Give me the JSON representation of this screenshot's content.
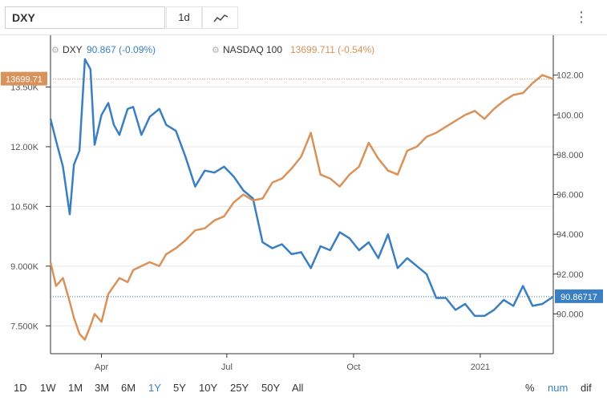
{
  "toolbar": {
    "symbol": "DXY",
    "interval": "1d",
    "menu_glyph": "⋮",
    "chart_type_icon": "line-chart-icon"
  },
  "legend": {
    "dxy_name": "DXY",
    "dxy_value": "90.867 (-0.09%)",
    "ndx_name": "NASDAQ 100",
    "ndx_value": "13699.711 (-0.54%)"
  },
  "ranges": {
    "items": [
      "1D",
      "1W",
      "1M",
      "3M",
      "6M",
      "1Y",
      "5Y",
      "10Y",
      "25Y",
      "50Y",
      "All"
    ],
    "active": "1Y",
    "right": [
      "%",
      "num",
      "dif"
    ],
    "right_active": "num"
  },
  "colors": {
    "dxy": "#3a7fc1",
    "ndx": "#d9925a",
    "grid": "#e8e8e8",
    "axis": "#555555",
    "active": "#3a7fc1"
  },
  "chart_data": {
    "type": "line",
    "x_tick_labels": [
      "Apr",
      "Jul",
      "Oct",
      "2021"
    ],
    "x_tick_dates": [
      "2020-04-01",
      "2020-07-01",
      "2020-10-01",
      "2021-01-01"
    ],
    "x_range": [
      "2020-02-24",
      "2021-02-23"
    ],
    "left_axis": {
      "ticks": [
        "7.500K",
        "9.000K",
        "10.50K",
        "12.00K",
        "13.50K"
      ],
      "tick_values": [
        7500,
        9000,
        10500,
        12000,
        13500
      ],
      "ylim": [
        6800,
        14800
      ]
    },
    "right_axis": {
      "ticks": [
        "90.000",
        "92.000",
        "94.000",
        "96.000",
        "98.000",
        "100.00",
        "102.00"
      ],
      "tick_values": [
        90,
        92,
        94,
        96,
        98,
        100,
        102
      ],
      "ylim": [
        88,
        104
      ]
    },
    "series": [
      {
        "name": "DXY",
        "axis": "right",
        "last_label": "90.86717",
        "points": [
          [
            "2020-02-24",
            99.8
          ],
          [
            "2020-02-28",
            98.7
          ],
          [
            "2020-03-04",
            97.4
          ],
          [
            "2020-03-09",
            95.0
          ],
          [
            "2020-03-12",
            97.5
          ],
          [
            "2020-03-16",
            98.2
          ],
          [
            "2020-03-20",
            102.8
          ],
          [
            "2020-03-24",
            102.3
          ],
          [
            "2020-03-27",
            98.5
          ],
          [
            "2020-04-01",
            100.0
          ],
          [
            "2020-04-06",
            100.6
          ],
          [
            "2020-04-10",
            99.5
          ],
          [
            "2020-04-14",
            99.0
          ],
          [
            "2020-04-20",
            100.3
          ],
          [
            "2020-04-24",
            100.4
          ],
          [
            "2020-04-30",
            99.0
          ],
          [
            "2020-05-06",
            99.9
          ],
          [
            "2020-05-13",
            100.3
          ],
          [
            "2020-05-18",
            99.5
          ],
          [
            "2020-05-25",
            99.2
          ],
          [
            "2020-06-01",
            97.9
          ],
          [
            "2020-06-08",
            96.4
          ],
          [
            "2020-06-15",
            97.2
          ],
          [
            "2020-06-22",
            97.1
          ],
          [
            "2020-06-29",
            97.4
          ],
          [
            "2020-07-06",
            96.9
          ],
          [
            "2020-07-13",
            96.2
          ],
          [
            "2020-07-20",
            95.8
          ],
          [
            "2020-07-27",
            93.6
          ],
          [
            "2020-08-03",
            93.3
          ],
          [
            "2020-08-10",
            93.5
          ],
          [
            "2020-08-17",
            93.0
          ],
          [
            "2020-08-24",
            93.1
          ],
          [
            "2020-08-31",
            92.3
          ],
          [
            "2020-09-07",
            93.4
          ],
          [
            "2020-09-14",
            93.2
          ],
          [
            "2020-09-21",
            94.1
          ],
          [
            "2020-09-28",
            93.8
          ],
          [
            "2020-10-05",
            93.2
          ],
          [
            "2020-10-12",
            93.6
          ],
          [
            "2020-10-19",
            92.8
          ],
          [
            "2020-10-26",
            94.0
          ],
          [
            "2020-11-02",
            92.3
          ],
          [
            "2020-11-09",
            92.8
          ],
          [
            "2020-11-16",
            92.4
          ],
          [
            "2020-11-23",
            92.0
          ],
          [
            "2020-11-30",
            90.8
          ],
          [
            "2020-12-07",
            90.8
          ],
          [
            "2020-12-14",
            90.2
          ],
          [
            "2020-12-21",
            90.5
          ],
          [
            "2020-12-28",
            89.9
          ],
          [
            "2021-01-04",
            89.9
          ],
          [
            "2021-01-11",
            90.2
          ],
          [
            "2021-01-18",
            90.7
          ],
          [
            "2021-01-25",
            90.4
          ],
          [
            "2021-02-01",
            91.4
          ],
          [
            "2021-02-08",
            90.4
          ],
          [
            "2021-02-15",
            90.5
          ],
          [
            "2021-02-23",
            90.867
          ]
        ]
      },
      {
        "name": "NASDAQ 100",
        "axis": "left",
        "last_label": "13699.71",
        "points": [
          [
            "2020-02-24",
            9100
          ],
          [
            "2020-02-28",
            8500
          ],
          [
            "2020-03-04",
            8700
          ],
          [
            "2020-03-09",
            8100
          ],
          [
            "2020-03-12",
            7700
          ],
          [
            "2020-03-16",
            7300
          ],
          [
            "2020-03-20",
            7150
          ],
          [
            "2020-03-24",
            7500
          ],
          [
            "2020-03-27",
            7800
          ],
          [
            "2020-04-01",
            7600
          ],
          [
            "2020-04-06",
            8300
          ],
          [
            "2020-04-10",
            8500
          ],
          [
            "2020-04-14",
            8700
          ],
          [
            "2020-04-20",
            8600
          ],
          [
            "2020-04-24",
            8900
          ],
          [
            "2020-04-30",
            9000
          ],
          [
            "2020-05-06",
            9100
          ],
          [
            "2020-05-13",
            9000
          ],
          [
            "2020-05-18",
            9300
          ],
          [
            "2020-05-25",
            9450
          ],
          [
            "2020-06-01",
            9650
          ],
          [
            "2020-06-08",
            9900
          ],
          [
            "2020-06-15",
            9950
          ],
          [
            "2020-06-22",
            10150
          ],
          [
            "2020-06-29",
            10250
          ],
          [
            "2020-07-06",
            10600
          ],
          [
            "2020-07-13",
            10800
          ],
          [
            "2020-07-20",
            10650
          ],
          [
            "2020-07-27",
            10700
          ],
          [
            "2020-08-03",
            11100
          ],
          [
            "2020-08-10",
            11200
          ],
          [
            "2020-08-17",
            11450
          ],
          [
            "2020-08-24",
            11750
          ],
          [
            "2020-08-31",
            12350
          ],
          [
            "2020-09-07",
            11300
          ],
          [
            "2020-09-14",
            11200
          ],
          [
            "2020-09-21",
            11000
          ],
          [
            "2020-09-28",
            11300
          ],
          [
            "2020-10-05",
            11500
          ],
          [
            "2020-10-12",
            12100
          ],
          [
            "2020-10-19",
            11700
          ],
          [
            "2020-10-26",
            11400
          ],
          [
            "2020-11-02",
            11300
          ],
          [
            "2020-11-09",
            11900
          ],
          [
            "2020-11-16",
            12000
          ],
          [
            "2020-11-23",
            12250
          ],
          [
            "2020-11-30",
            12350
          ],
          [
            "2020-12-07",
            12500
          ],
          [
            "2020-12-14",
            12650
          ],
          [
            "2020-12-21",
            12800
          ],
          [
            "2020-12-28",
            12900
          ],
          [
            "2021-01-04",
            12700
          ],
          [
            "2021-01-11",
            12950
          ],
          [
            "2021-01-18",
            13150
          ],
          [
            "2021-01-25",
            13300
          ],
          [
            "2021-02-01",
            13350
          ],
          [
            "2021-02-08",
            13600
          ],
          [
            "2021-02-15",
            13800
          ],
          [
            "2021-02-23",
            13699.71
          ]
        ]
      }
    ],
    "grid": true,
    "legend_position": "top-left"
  }
}
